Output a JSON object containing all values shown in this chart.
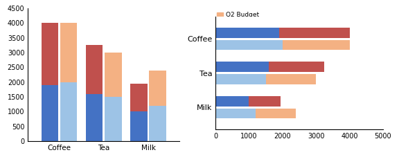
{
  "categories": [
    "Coffee",
    "Tea",
    "Milk"
  ],
  "q1_actual": [
    1900,
    1600,
    1000
  ],
  "q2_actual": [
    2100,
    1650,
    950
  ],
  "q1_budget": [
    2000,
    1500,
    1200
  ],
  "q2_budget": [
    2000,
    1500,
    1200
  ],
  "color_q1_actual": "#4472C4",
  "color_q2_actual": "#C0504D",
  "color_q1_budget": "#9DC3E6",
  "color_q2_budget": "#F4B183",
  "left_ylim": [
    0,
    4500
  ],
  "left_yticks": [
    0,
    500,
    1000,
    1500,
    2000,
    2500,
    3000,
    3500,
    4000,
    4500
  ],
  "right_xlim": [
    0,
    5000
  ],
  "right_xticks": [
    0,
    1000,
    2000,
    3000,
    4000,
    5000
  ]
}
